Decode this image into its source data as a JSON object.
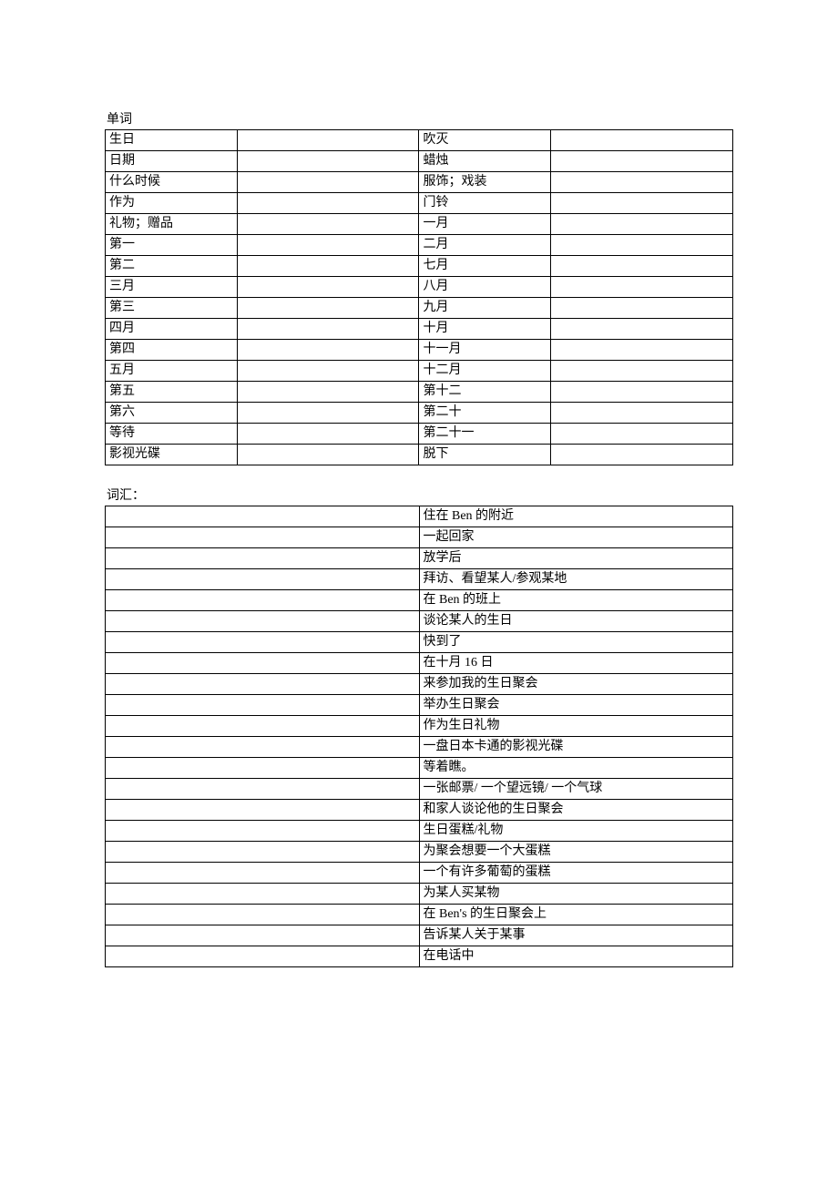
{
  "section1": {
    "title": "单词",
    "rows": [
      {
        "c1": "生日",
        "c2": "",
        "c3": "吹灭",
        "c4": ""
      },
      {
        "c1": "日期",
        "c2": "",
        "c3": "蜡烛",
        "c4": ""
      },
      {
        "c1": "什么时候",
        "c2": "",
        "c3": "服饰；戏装",
        "c4": ""
      },
      {
        "c1": "作为",
        "c2": "",
        "c3": "门铃",
        "c4": ""
      },
      {
        "c1": "礼物；赠品",
        "c2": "",
        "c3": "一月",
        "c4": ""
      },
      {
        "c1": "第一",
        "c2": "",
        "c3": "二月",
        "c4": ""
      },
      {
        "c1": "第二",
        "c2": "",
        "c3": "七月",
        "c4": ""
      },
      {
        "c1": "三月",
        "c2": "",
        "c3": "八月",
        "c4": ""
      },
      {
        "c1": "第三",
        "c2": "",
        "c3": "九月",
        "c4": ""
      },
      {
        "c1": "四月",
        "c2": "",
        "c3": "十月",
        "c4": ""
      },
      {
        "c1": "第四",
        "c2": "",
        "c3": "十一月",
        "c4": ""
      },
      {
        "c1": "五月",
        "c2": "",
        "c3": "十二月",
        "c4": ""
      },
      {
        "c1": "第五",
        "c2": "",
        "c3": "第十二",
        "c4": ""
      },
      {
        "c1": "第六",
        "c2": "",
        "c3": "第二十",
        "c4": ""
      },
      {
        "c1": "等待",
        "c2": "",
        "c3": "第二十一",
        "c4": ""
      },
      {
        "c1": "影视光碟",
        "c2": "",
        "c3": "脱下",
        "c4": ""
      }
    ]
  },
  "section2": {
    "title": "词汇：",
    "rows": [
      {
        "c1": "",
        "c2": "住在 Ben 的附近"
      },
      {
        "c1": "",
        "c2": "一起回家"
      },
      {
        "c1": "",
        "c2": "放学后"
      },
      {
        "c1": "",
        "c2": "拜访、看望某人/参观某地"
      },
      {
        "c1": "",
        "c2": "在 Ben 的班上"
      },
      {
        "c1": "",
        "c2": "谈论某人的生日"
      },
      {
        "c1": "",
        "c2": "快到了"
      },
      {
        "c1": "",
        "c2": "在十月 16 日"
      },
      {
        "c1": "",
        "c2": "来参加我的生日聚会"
      },
      {
        "c1": "",
        "c2": "举办生日聚会"
      },
      {
        "c1": "",
        "c2": "作为生日礼物"
      },
      {
        "c1": "",
        "c2": "一盘日本卡通的影视光碟"
      },
      {
        "c1": "",
        "c2": "等着瞧。"
      },
      {
        "c1": "",
        "c2": "一张邮票/ 一个望远镜/ 一个气球"
      },
      {
        "c1": "",
        "c2": "和家人谈论他的生日聚会"
      },
      {
        "c1": "",
        "c2": "生日蛋糕/礼物"
      },
      {
        "c1": "",
        "c2": "为聚会想要一个大蛋糕"
      },
      {
        "c1": "",
        "c2": "一个有许多葡萄的蛋糕"
      },
      {
        "c1": "",
        "c2": "为某人买某物"
      },
      {
        "c1": "",
        "c2": "在 Ben's 的生日聚会上"
      },
      {
        "c1": "",
        "c2": "告诉某人关于某事"
      },
      {
        "c1": "",
        "c2": "在电话中"
      }
    ]
  }
}
